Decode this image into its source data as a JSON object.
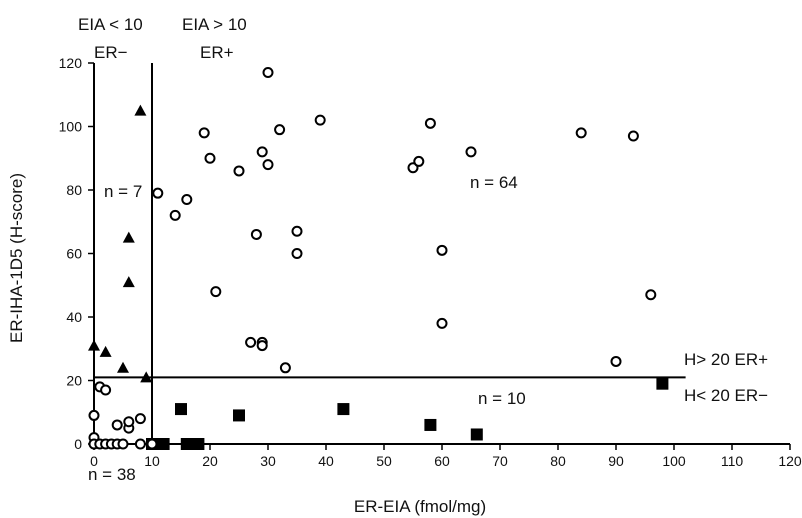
{
  "chart_data": {
    "type": "scatter",
    "xlabel": "ER-EIA (fmol/mg)",
    "ylabel": "ER-IHA-1D5 (H-score)",
    "xlim": [
      0,
      120
    ],
    "ylim": [
      0,
      120
    ],
    "x_ticks": [
      "0",
      "10",
      "20",
      "30",
      "40",
      "50",
      "60",
      "70",
      "80",
      "90",
      "100",
      "110",
      "120"
    ],
    "y_ticks": [
      "0",
      "20",
      "40",
      "60",
      "80",
      "100",
      "120"
    ],
    "annotations": {
      "eia_low": "EIA < 10",
      "er_neg": "ER−",
      "eia_high": "EIA > 10",
      "er_pos": "ER+",
      "n7": "n = 7",
      "n64": "n = 64",
      "n10": "n = 10",
      "n38": "n = 38",
      "h_high": "H> 20 ER+",
      "h_low": "H< 20 ER−"
    },
    "reference_lines": {
      "x": 10,
      "y": 21
    },
    "series": [
      {
        "marker": "triangle",
        "color": "#000000",
        "points": [
          [
            0,
            31
          ],
          [
            2,
            29
          ],
          [
            5,
            24
          ],
          [
            6,
            51
          ],
          [
            6,
            65
          ],
          [
            8,
            105
          ],
          [
            9,
            21
          ]
        ]
      },
      {
        "marker": "open-circle",
        "color": "#000000",
        "points": [
          [
            11,
            79
          ],
          [
            14,
            72
          ],
          [
            16,
            77
          ],
          [
            19,
            98
          ],
          [
            20,
            90
          ],
          [
            21,
            48
          ],
          [
            25,
            86
          ],
          [
            27,
            32
          ],
          [
            28,
            66
          ],
          [
            29,
            32
          ],
          [
            29,
            31
          ],
          [
            29,
            92
          ],
          [
            30,
            117
          ],
          [
            30,
            88
          ],
          [
            32,
            99
          ],
          [
            33,
            24
          ],
          [
            35,
            67
          ],
          [
            35,
            60
          ],
          [
            39,
            102
          ],
          [
            55,
            87
          ],
          [
            56,
            89
          ],
          [
            58,
            101
          ],
          [
            60,
            61
          ],
          [
            60,
            38
          ],
          [
            65,
            92
          ],
          [
            84,
            98
          ],
          [
            93,
            97
          ],
          [
            96,
            47
          ],
          [
            90,
            26
          ]
        ]
      },
      {
        "marker": "filled-square",
        "color": "#000000",
        "points": [
          [
            10,
            0
          ],
          [
            11,
            0
          ],
          [
            12,
            0
          ],
          [
            15,
            11
          ],
          [
            16,
            0
          ],
          [
            17,
            0
          ],
          [
            18,
            0
          ],
          [
            25,
            9
          ],
          [
            43,
            11
          ],
          [
            58,
            6
          ],
          [
            66,
            3
          ],
          [
            98,
            19
          ]
        ]
      },
      {
        "marker": "open-circle",
        "color": "#000000",
        "points": [
          [
            0,
            9
          ],
          [
            0,
            2
          ],
          [
            0,
            0
          ],
          [
            1,
            0
          ],
          [
            1,
            18
          ],
          [
            2,
            17
          ],
          [
            2,
            0
          ],
          [
            3,
            0
          ],
          [
            4,
            0
          ],
          [
            4,
            6
          ],
          [
            5,
            0
          ],
          [
            6,
            5
          ],
          [
            6,
            7
          ],
          [
            8,
            8
          ],
          [
            8,
            0
          ],
          [
            10,
            0
          ]
        ]
      }
    ]
  }
}
